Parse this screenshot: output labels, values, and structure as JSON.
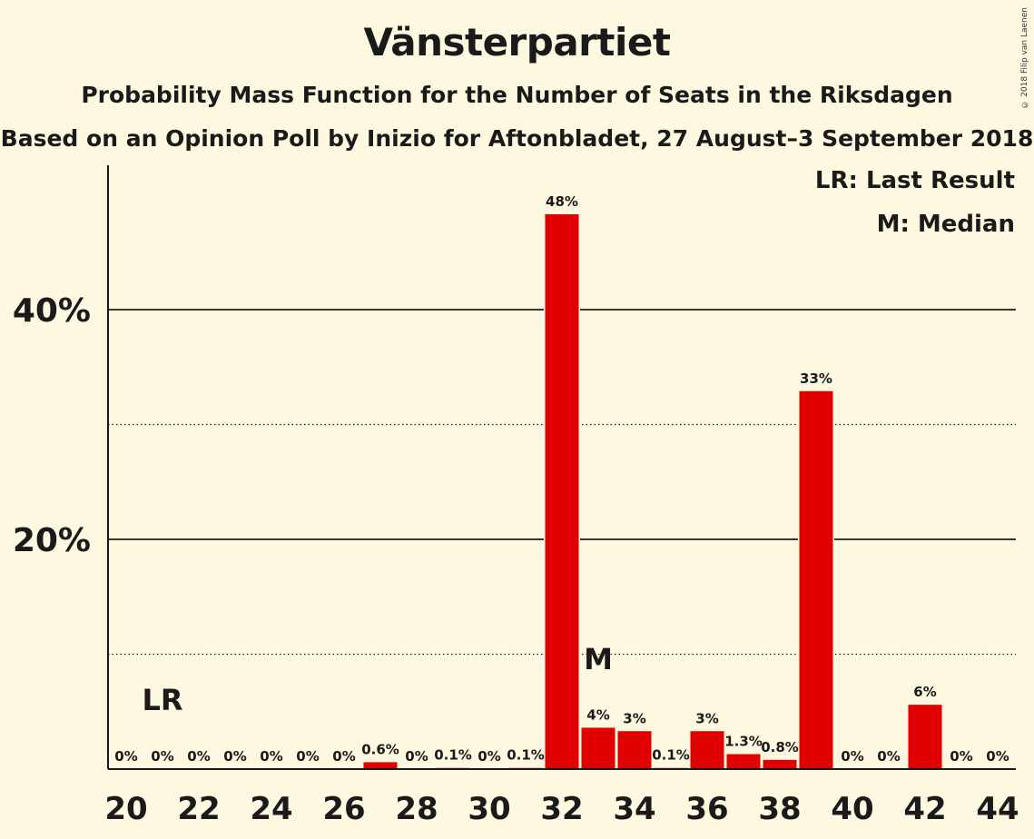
{
  "header": {
    "title": "Vänsterpartiet",
    "subtitle": "Probability Mass Function for the Number of Seats in the Riksdagen",
    "subtitle2": "Based on an Opinion Poll by Inizio for Aftonbladet, 27 August–3 September 2018",
    "copyright": "© 2018 Filip van Laenen"
  },
  "legend": {
    "lr": "LR: Last Result",
    "m": "M: Median"
  },
  "colors": {
    "bar": "#e00000",
    "background": "#fff8e1",
    "text": "#1a1a1a"
  },
  "chart_data": {
    "type": "bar",
    "title": "Vänsterpartiet",
    "x": [
      20,
      21,
      22,
      23,
      24,
      25,
      26,
      27,
      28,
      29,
      30,
      31,
      32,
      33,
      34,
      35,
      36,
      37,
      38,
      39,
      40,
      41,
      42,
      43,
      44
    ],
    "values": [
      0,
      0,
      0,
      0,
      0,
      0,
      0,
      0.6,
      0,
      0.1,
      0,
      0.1,
      48.3,
      3.6,
      3.3,
      0.1,
      3.3,
      1.3,
      0.8,
      32.9,
      0,
      0,
      5.6,
      0,
      0
    ],
    "labels": [
      "0%",
      "0%",
      "0%",
      "0%",
      "0%",
      "0%",
      "0%",
      "0.6%",
      "0%",
      "0.1%",
      "0%",
      "0.1%",
      "48%",
      "4%",
      "3%",
      "0.1%",
      "3%",
      "1.3%",
      "0.8%",
      "33%",
      "0%",
      "0%",
      "6%",
      "0%",
      "0%"
    ],
    "x_ticks": [
      "20",
      "22",
      "24",
      "26",
      "28",
      "30",
      "32",
      "34",
      "36",
      "38",
      "40",
      "42",
      "44"
    ],
    "y_ticks": [
      "20%",
      "40%"
    ],
    "ylim": [
      0,
      52
    ],
    "major_grid": [
      20,
      40
    ],
    "minor_grid": [
      10,
      30
    ],
    "markers": [
      {
        "label": "LR",
        "x": 21
      },
      {
        "label": "M",
        "x": 33
      }
    ],
    "legend_position": "top-right"
  }
}
